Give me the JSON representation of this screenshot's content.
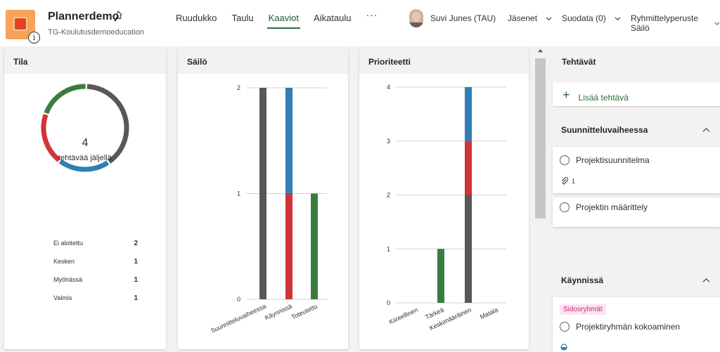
{
  "header": {
    "plan_title": "Plannerdemo",
    "plan_subtitle": "TG-Koulutusdemoeducation",
    "nav": [
      "Ruudukko",
      "Taulu",
      "Kaaviot",
      "Aikataulu"
    ],
    "nav_active": "Kaaviot",
    "more": "···",
    "user_name": "Suvi Junes (TAU)",
    "members_label": "Jäsenet",
    "filter_label": "Suodata (0)",
    "group_label": "Ryhmittelyperuste Säilö",
    "info_glyph": "i"
  },
  "status_card": {
    "title": "Tila",
    "remaining_count": "4",
    "remaining_label": "tehtävää jäljellä",
    "legend": [
      {
        "label": "Ei aloitettu",
        "count": "2"
      },
      {
        "label": "Kesken",
        "count": "1"
      },
      {
        "label": "Myöhässä",
        "count": "1"
      },
      {
        "label": "Valmis",
        "count": "1"
      }
    ]
  },
  "bucket_card": {
    "title": "Säilö"
  },
  "priority_card": {
    "title": "Prioriteetti"
  },
  "colors": {
    "not_started": "#585858",
    "in_progress": "#2f7fb5",
    "late": "#d13438",
    "done": "#3a7d3e",
    "accent": "#2e6b3d"
  },
  "chart_data": [
    {
      "type": "pie",
      "title": "Tila",
      "categories": [
        "Ei aloitettu",
        "Kesken",
        "Myöhässä",
        "Valmis"
      ],
      "values": [
        2,
        1,
        1,
        1
      ],
      "center_text": "4 tehtävää jäljellä"
    },
    {
      "type": "bar",
      "stacked": true,
      "title": "Säilö",
      "categories": [
        "Suunnitteluvaiheessa",
        "Käynnissä",
        "Toteutettu"
      ],
      "series": [
        {
          "name": "Ei aloitettu",
          "values": [
            2,
            0,
            0
          ]
        },
        {
          "name": "Myöhässä",
          "values": [
            0,
            1,
            0
          ]
        },
        {
          "name": "Kesken",
          "values": [
            0,
            1,
            0
          ]
        },
        {
          "name": "Valmis",
          "values": [
            0,
            0,
            1
          ]
        }
      ],
      "ylim": [
        0,
        2
      ],
      "yticks": [
        0,
        1,
        2
      ]
    },
    {
      "type": "bar",
      "stacked": true,
      "title": "Prioriteetti",
      "categories": [
        "Kiireellinen",
        "Tärkeä",
        "Keskimääräinen",
        "Matala"
      ],
      "series": [
        {
          "name": "Ei aloitettu",
          "values": [
            0,
            0,
            2,
            0
          ]
        },
        {
          "name": "Myöhässä",
          "values": [
            0,
            0,
            1,
            0
          ]
        },
        {
          "name": "Kesken",
          "values": [
            0,
            0,
            1,
            0
          ]
        },
        {
          "name": "Valmis",
          "values": [
            0,
            1,
            0,
            0
          ]
        }
      ],
      "ylim": [
        0,
        4
      ],
      "yticks": [
        0,
        1,
        2,
        3,
        4
      ]
    }
  ],
  "tasks_panel": {
    "title": "Tehtävät",
    "add_task_label": "Lisää tehtävä",
    "buckets": [
      {
        "name": "Suunnitteluvaiheessa",
        "tasks": [
          {
            "title": "Projektisuunnitelma",
            "attachments": "1"
          },
          {
            "title": "Projektin määrittely"
          }
        ]
      },
      {
        "name": "Käynnissä",
        "tasks": [
          {
            "tag": "Sidosryhmät",
            "title": "Projektiryhmän kokoaminen"
          }
        ]
      }
    ]
  }
}
